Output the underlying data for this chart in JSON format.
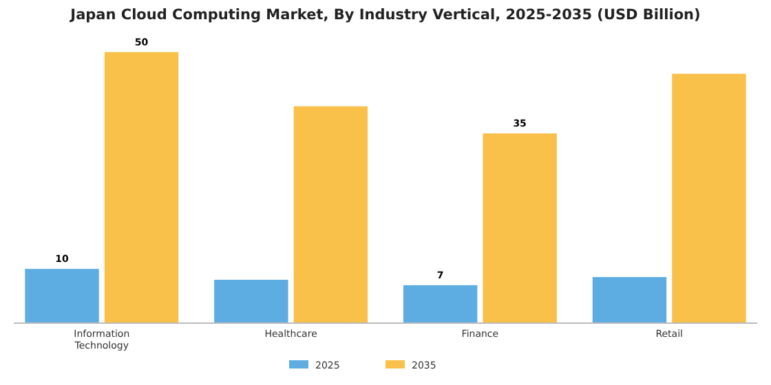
{
  "chart_data": {
    "type": "bar",
    "title": "Japan Cloud Computing Market, By Industry Vertical, 2025-2035 (USD Billion)",
    "categories": [
      "Information\nTechnology",
      "Healthcare",
      "Finance",
      "Retail"
    ],
    "series": [
      {
        "name": "2025",
        "color": "#5dade2",
        "values": [
          10,
          8,
          7,
          8.5
        ],
        "value_labels": [
          "10",
          null,
          "7",
          null
        ]
      },
      {
        "name": "2035",
        "color": "#f9c04a",
        "values": [
          50,
          40,
          35,
          46
        ],
        "value_labels": [
          "50",
          null,
          "35",
          null
        ]
      }
    ],
    "legend": "bottom",
    "tick_labels": "x"
  }
}
